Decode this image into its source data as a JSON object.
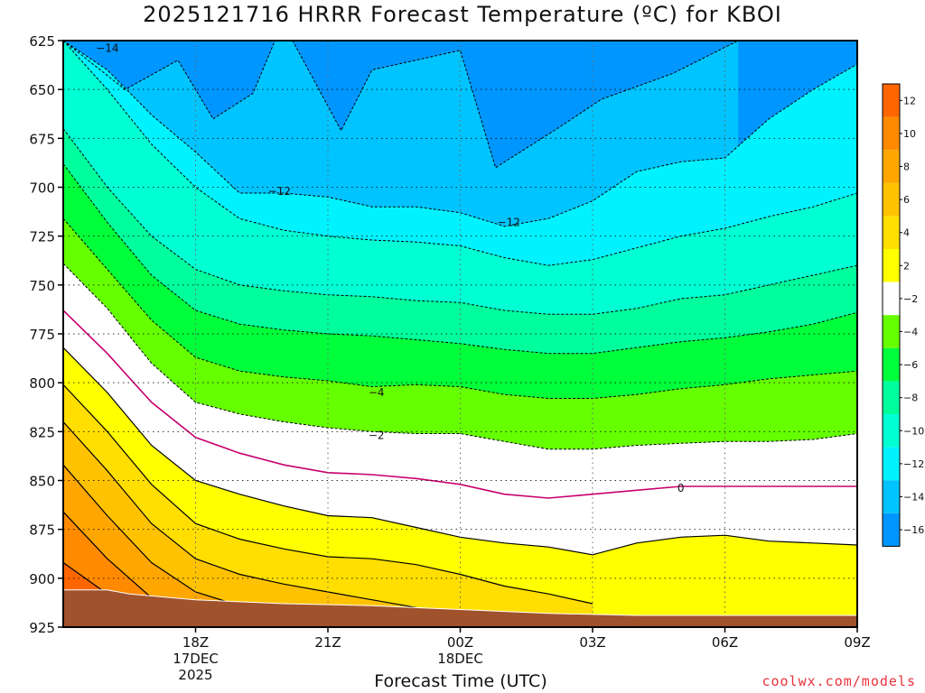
{
  "chart_data": {
    "type": "heatmap",
    "subtype": "filled-contour",
    "title": "2025121716 HRRR Forecast Temperature (ºC) for KBOI",
    "xlabel": "Forecast Time (UTC)",
    "credit": "coolwx.com/models",
    "x_range_hours": [
      -3,
      15
    ],
    "y_range_hpa": [
      925,
      625
    ],
    "y_ticks": [
      625,
      650,
      675,
      700,
      725,
      750,
      775,
      800,
      825,
      850,
      875,
      900,
      925
    ],
    "x_ticks": [
      {
        "hour": 0,
        "lines": [
          "18Z",
          "17DEC",
          "2025"
        ]
      },
      {
        "hour": 3,
        "lines": [
          "21Z"
        ]
      },
      {
        "hour": 6,
        "lines": [
          "00Z",
          "18DEC"
        ]
      },
      {
        "hour": 9,
        "lines": [
          "03Z"
        ]
      },
      {
        "hour": 12,
        "lines": [
          "06Z"
        ]
      },
      {
        "hour": 15,
        "lines": [
          "09Z"
        ]
      }
    ],
    "colorbar": {
      "labels": [
        "12",
        "10",
        "8",
        "6",
        "4",
        "2",
        "−2",
        "−4",
        "−6",
        "−8",
        "−10",
        "−12",
        "−14",
        "−16"
      ],
      "colors": [
        "#ff6600",
        "#ff8a00",
        "#ffa600",
        "#ffc200",
        "#ffde00",
        "#ffff00",
        "#ffffff",
        "#66ff00",
        "#00ff3a",
        "#00ff9c",
        "#00ffd2",
        "#00f2ff",
        "#00c4ff",
        "#0096ff"
      ]
    },
    "contour_labels": [
      {
        "text": "−14",
        "hour": -2.0,
        "p": 629
      },
      {
        "text": "−12",
        "hour": 1.9,
        "p": 702
      },
      {
        "text": "−12",
        "hour": 7.1,
        "p": 718
      },
      {
        "text": "−4",
        "hour": 4.1,
        "p": 805
      },
      {
        "text": "−2",
        "hour": 4.1,
        "p": 827
      },
      {
        "text": "0",
        "hour": 11.0,
        "p": 854
      }
    ],
    "surface_color": "#a0522d",
    "contour_levels_degC": [
      -14,
      -12,
      -10,
      -8,
      -6,
      -4,
      -2,
      0,
      2,
      4,
      6,
      8,
      10
    ]
  }
}
